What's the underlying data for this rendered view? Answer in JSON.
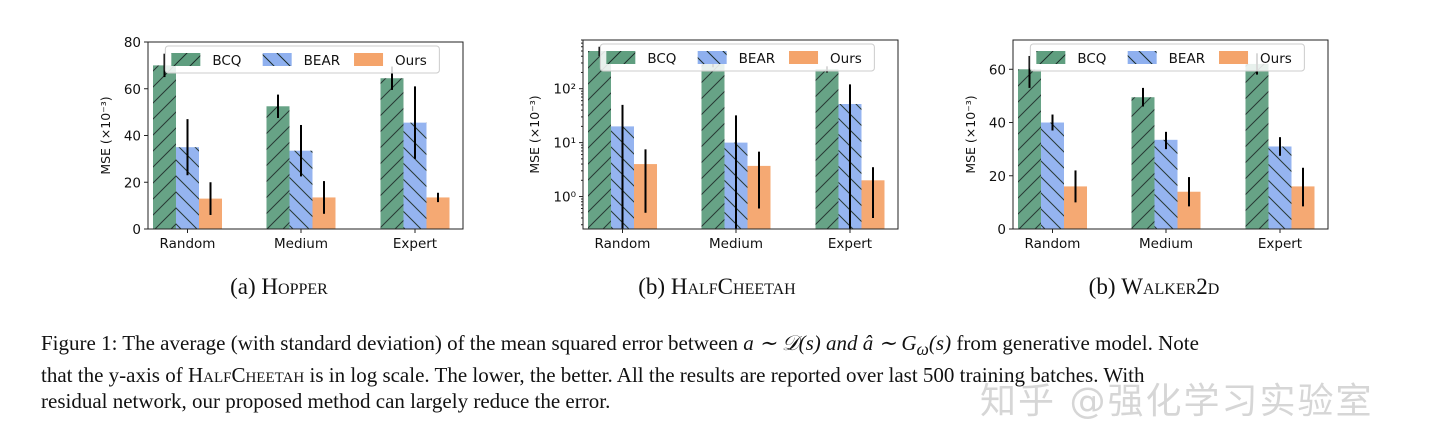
{
  "colors": {
    "BCQ": "#5f9e7f",
    "BEAR": "#8fb0ef",
    "Ours": "#f4a46b",
    "hatch": "#1c2e2a"
  },
  "chart_data": [
    {
      "type": "bar",
      "subcaption_prefix": "(a) ",
      "subcaption": "Hopper",
      "ylabel": "MSE (×10⁻³)",
      "yscale": "linear",
      "ylim": [
        0,
        80
      ],
      "yticks": [
        "0",
        "20",
        "40",
        "60",
        "80"
      ],
      "ytick_values": [
        0,
        20,
        40,
        60,
        80
      ],
      "categories": [
        "Random",
        "Medium",
        "Expert"
      ],
      "legend": "top",
      "grid": false,
      "series": [
        {
          "name": "BCQ",
          "hatch": "//",
          "values": [
            70,
            52.5,
            64.5
          ],
          "err_low": [
            65,
            47.5,
            59.5
          ],
          "err_high": [
            75,
            57.5,
            69.5
          ]
        },
        {
          "name": "BEAR",
          "hatch": "\\\\",
          "values": [
            35,
            33.5,
            45.5
          ],
          "err_low": [
            23,
            22.5,
            30
          ],
          "err_high": [
            47,
            44.5,
            61
          ]
        },
        {
          "name": "Ours",
          "hatch": "",
          "values": [
            13,
            13.5,
            13.5
          ],
          "err_low": [
            6,
            6.5,
            11.5
          ],
          "err_high": [
            20,
            20.5,
            15.5
          ]
        }
      ]
    },
    {
      "type": "bar",
      "subcaption_prefix": "(b) ",
      "subcaption": "HalfCheetah",
      "ylabel": "MSE (×10⁻³)",
      "yscale": "log",
      "ylim": [
        0.25,
        800
      ],
      "yticks": [
        "10⁰",
        "10¹",
        "10²"
      ],
      "ytick_values": [
        1,
        10,
        100
      ],
      "categories": [
        "Random",
        "Medium",
        "Expert"
      ],
      "legend": "top",
      "grid": false,
      "series": [
        {
          "name": "BCQ",
          "hatch": "//",
          "values": [
            500,
            300,
            230
          ],
          "err_low": [
            400,
            250,
            200
          ],
          "err_high": [
            600,
            350,
            260
          ]
        },
        {
          "name": "BEAR",
          "hatch": "\\\\",
          "values": [
            20,
            10,
            52
          ],
          "err_low": [
            0.25,
            0.25,
            0.25
          ],
          "err_high": [
            50,
            32,
            120
          ]
        },
        {
          "name": "Ours",
          "hatch": "",
          "values": [
            4,
            3.7,
            2
          ],
          "err_low": [
            0.5,
            0.6,
            0.4
          ],
          "err_high": [
            7.5,
            6.8,
            3.5
          ]
        }
      ]
    },
    {
      "type": "bar",
      "subcaption_prefix": "(b) ",
      "subcaption": "Walker2d",
      "ylabel": "MSE (×10⁻³)",
      "yscale": "linear",
      "ylim": [
        0,
        71
      ],
      "yticks": [
        "0",
        "20",
        "40",
        "60"
      ],
      "ytick_values": [
        0,
        20,
        40,
        60
      ],
      "categories": [
        "Random",
        "Medium",
        "Expert"
      ],
      "legend": "top",
      "grid": false,
      "series": [
        {
          "name": "BCQ",
          "hatch": "//",
          "values": [
            60,
            49.5,
            62
          ],
          "err_low": [
            53,
            46,
            58
          ],
          "err_high": [
            65,
            53,
            66
          ]
        },
        {
          "name": "BEAR",
          "hatch": "\\\\",
          "values": [
            40,
            33.5,
            31
          ],
          "err_low": [
            37,
            30,
            27.5
          ],
          "err_high": [
            43,
            36.5,
            34.5
          ]
        },
        {
          "name": "Ours",
          "hatch": "",
          "values": [
            16,
            14,
            16
          ],
          "err_low": [
            10,
            8.5,
            8.5
          ],
          "err_high": [
            22,
            19.5,
            23
          ]
        }
      ]
    }
  ],
  "caption": {
    "line1_a": "Figure 1: The average (with standard deviation) of the mean squared error between ",
    "line1_math": "a ∼ 𝒟(s) and â ∼ G",
    "line1_sub": "ω",
    "line1_math2": "(s)",
    "line1_b": " from generative model. Note",
    "line2_a": "that the y-axis of ",
    "line2_sc": "HalfCheetah",
    "line2_b": "  is in log scale.  The lower, the better.  All the results are reported over last 500 training batches.  With",
    "line3": "residual network, our proposed method can largely reduce the error."
  },
  "watermark": "知乎 @强化学习实验室"
}
